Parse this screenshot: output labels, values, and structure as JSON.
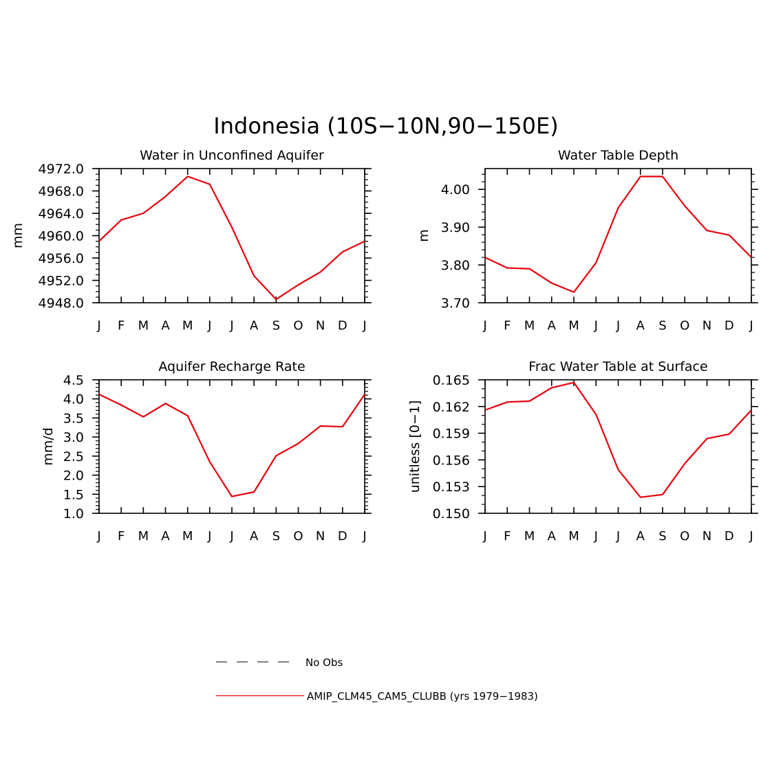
{
  "figure": {
    "title": "Indonesia (10S−10N,90−150E)"
  },
  "legend": {
    "items": [
      {
        "label": "No Obs",
        "style": "dashed",
        "color": "#333333"
      },
      {
        "label": "AMIP_CLM45_CAM5_CLUBB (yrs 1979−1983)",
        "style": "solid",
        "color": "#e8000b"
      }
    ]
  },
  "chart_data": [
    {
      "type": "line",
      "title": "Water in Unconfined Aquifer",
      "ylabel": "mm",
      "xlabel": "",
      "categories": [
        "J",
        "F",
        "M",
        "A",
        "M",
        "J",
        "J",
        "A",
        "S",
        "O",
        "N",
        "D",
        "J"
      ],
      "ylim": [
        4948.0,
        4972.0
      ],
      "yticks": [
        "4948.0",
        "4952.0",
        "4956.0",
        "4960.0",
        "4964.0",
        "4968.0",
        "4972.0"
      ],
      "yminor_per_major": 4,
      "series": [
        {
          "color": "#e8000b",
          "values": [
            4959.0,
            4962.8,
            4964.0,
            4967.0,
            4970.6,
            4969.2,
            4961.5,
            4952.8,
            4948.6,
            4951.2,
            4953.5,
            4957.1,
            4959.0
          ]
        }
      ]
    },
    {
      "type": "line",
      "title": "Water Table Depth",
      "ylabel": "m",
      "xlabel": "",
      "categories": [
        "J",
        "F",
        "M",
        "A",
        "M",
        "J",
        "J",
        "A",
        "S",
        "O",
        "N",
        "D",
        "J"
      ],
      "ylim": [
        3.7,
        4.055
      ],
      "yticks": [
        "3.70",
        "3.80",
        "3.90",
        "4.00"
      ],
      "yminor_per_major": 5,
      "series": [
        {
          "color": "#e8000b",
          "values": [
            3.82,
            3.792,
            3.79,
            3.752,
            3.728,
            3.806,
            3.951,
            4.034,
            4.034,
            3.956,
            3.891,
            3.879,
            3.82
          ]
        }
      ]
    },
    {
      "type": "line",
      "title": "Aquifer Recharge Rate",
      "ylabel": "mm/d",
      "xlabel": "",
      "categories": [
        "J",
        "F",
        "M",
        "A",
        "M",
        "J",
        "J",
        "A",
        "S",
        "O",
        "N",
        "D",
        "J"
      ],
      "ylim": [
        1.0,
        4.5
      ],
      "yticks": [
        "1.0",
        "1.5",
        "2.0",
        "2.5",
        "3.0",
        "3.5",
        "4.0",
        "4.5"
      ],
      "yminor_per_major": 5,
      "series": [
        {
          "color": "#e8000b",
          "values": [
            4.12,
            3.84,
            3.53,
            3.88,
            3.56,
            2.35,
            1.44,
            1.56,
            2.51,
            2.83,
            3.29,
            3.27,
            4.12
          ]
        }
      ]
    },
    {
      "type": "line",
      "title": "Frac Water Table at Surface",
      "ylabel": "unitless [0−1]",
      "xlabel": "",
      "categories": [
        "J",
        "F",
        "M",
        "A",
        "M",
        "J",
        "J",
        "A",
        "S",
        "O",
        "N",
        "D",
        "J"
      ],
      "ylim": [
        0.15,
        0.165
      ],
      "yticks": [
        "0.150",
        "0.153",
        "0.156",
        "0.159",
        "0.162",
        "0.165"
      ],
      "yminor_per_major": 3,
      "series": [
        {
          "color": "#e8000b",
          "values": [
            0.1616,
            0.1625,
            0.1626,
            0.1641,
            0.1647,
            0.1611,
            0.1549,
            0.1518,
            0.1521,
            0.1556,
            0.1584,
            0.1589,
            0.1616
          ]
        }
      ]
    }
  ]
}
